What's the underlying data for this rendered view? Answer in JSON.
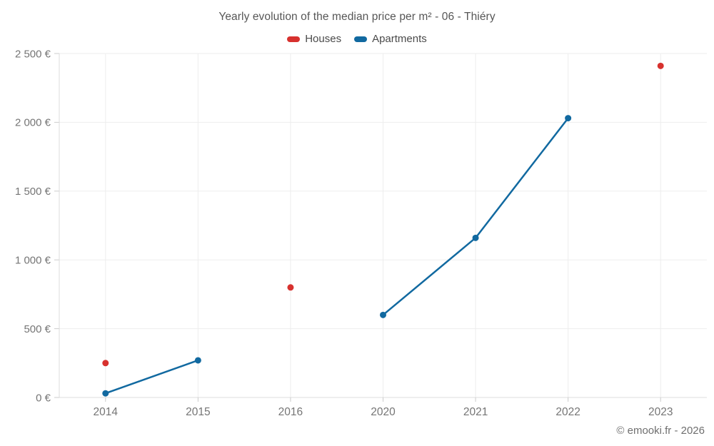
{
  "title": "Yearly evolution of the median price per m² - 06 - Thiéry",
  "legend": {
    "items": [
      {
        "label": "Houses",
        "color": "#d7312e"
      },
      {
        "label": "Apartments",
        "color": "#1169a0"
      }
    ]
  },
  "footer": "© emooki.fr - 2026",
  "colors": {
    "houses": "#d7312e",
    "apartments": "#1169a0",
    "grid_line": "#ededed",
    "axis_line": "#dcdcdc",
    "tick_mark": "#cccccc",
    "tick_text": "#757575"
  },
  "chart_data": {
    "type": "line",
    "title": "Yearly evolution of the median price per m² - 06 - Thiéry",
    "categories": [
      "2014",
      "2015",
      "2016",
      "2020",
      "2021",
      "2022",
      "2023"
    ],
    "series": [
      {
        "name": "Houses",
        "color": "#d7312e",
        "style": "points",
        "values": [
          250,
          null,
          800,
          null,
          null,
          null,
          2410
        ]
      },
      {
        "name": "Apartments",
        "color": "#1169a0",
        "style": "line+points",
        "values": [
          30,
          270,
          null,
          600,
          1160,
          2030,
          null
        ]
      }
    ],
    "xlabel": "",
    "ylabel": "",
    "ylim": [
      0,
      2500
    ],
    "yticks": [
      {
        "value": 0,
        "label": "0 €"
      },
      {
        "value": 500,
        "label": "500 €"
      },
      {
        "value": 1000,
        "label": "1 000 €"
      },
      {
        "value": 1500,
        "label": "1 500 €"
      },
      {
        "value": 2000,
        "label": "2 000 €"
      },
      {
        "value": 2500,
        "label": "2 500 €"
      }
    ],
    "grid": true,
    "legend_position": "top",
    "line_gaps": "series values of null create breaks in the line"
  }
}
